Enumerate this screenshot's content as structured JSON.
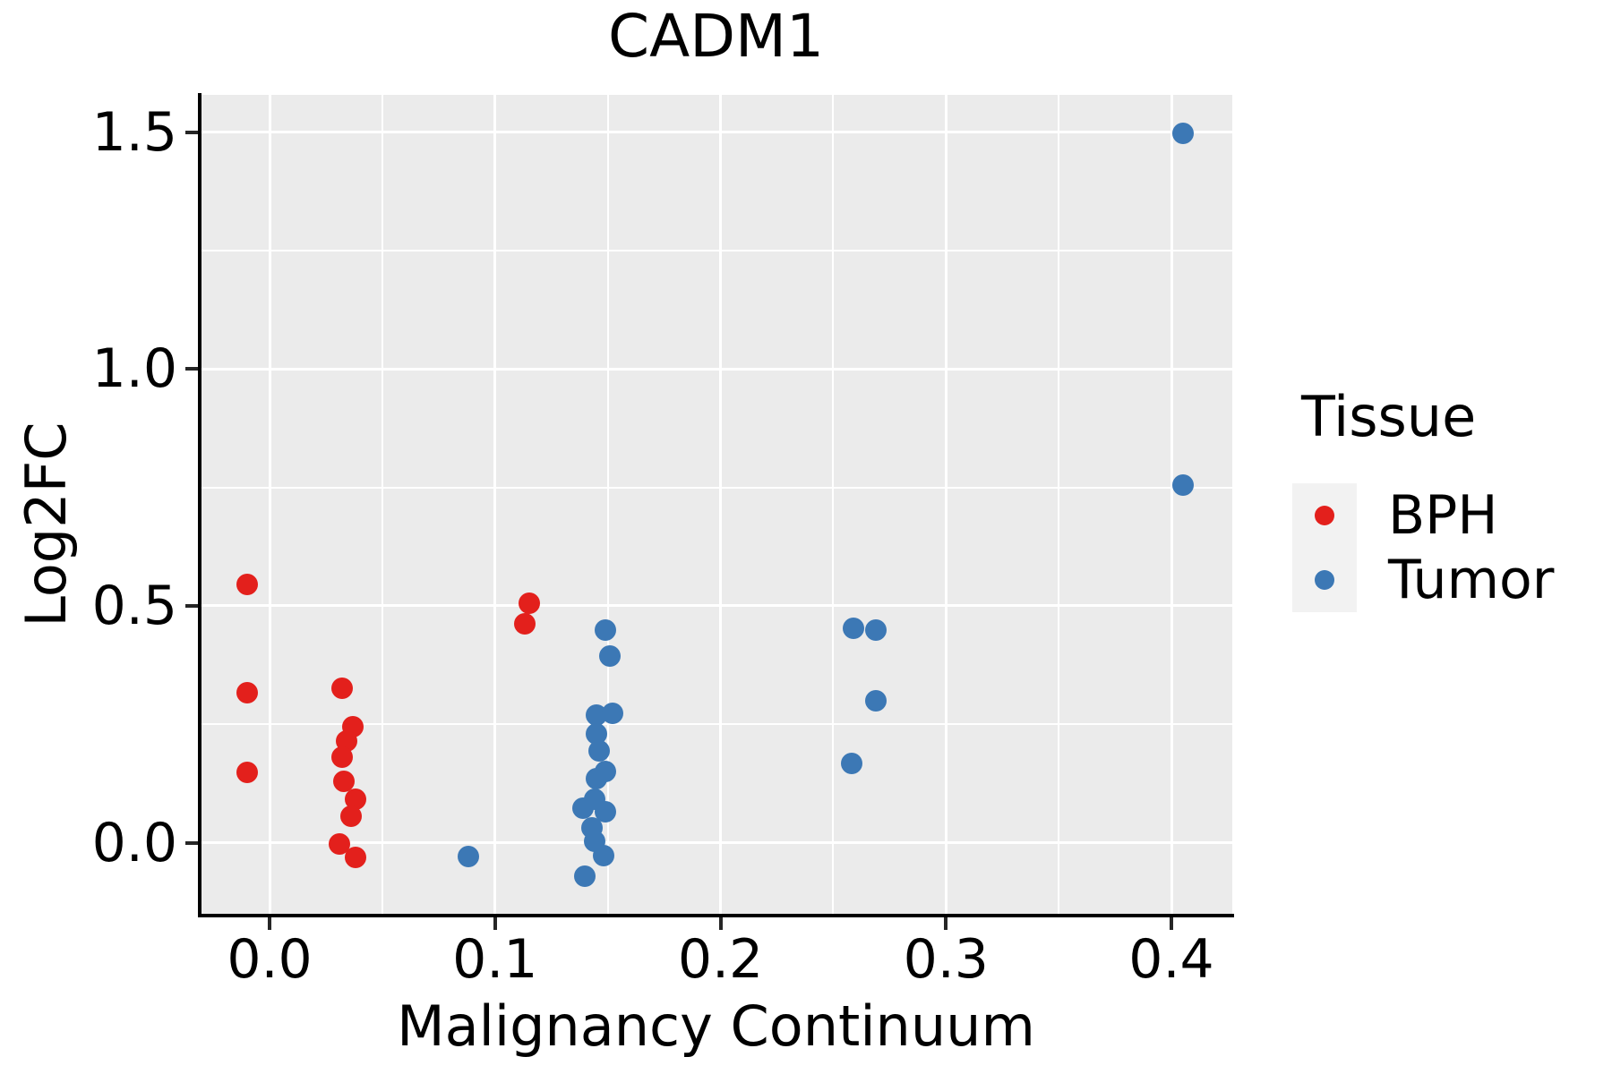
{
  "title": "CADM1",
  "axes": {
    "x_label": "Malignancy Continuum",
    "y_label": "Log2FC",
    "x_tick_labels": [
      "0.0",
      "0.1",
      "0.2",
      "0.3",
      "0.4"
    ],
    "y_tick_labels": [
      "0.0",
      "0.5",
      "1.0",
      "1.5"
    ]
  },
  "legend": {
    "title": "Tissue",
    "items": [
      {
        "label": "BPH",
        "color": "#e3201c"
      },
      {
        "label": "Tumor",
        "color": "#3c78b5"
      }
    ]
  },
  "colors": {
    "plot_background": "#ebebeb",
    "grid": "#ffffff",
    "legend_key_background": "#f2f2f2",
    "bph": "#e3201c",
    "tumor": "#3c78b5"
  },
  "chart_data": {
    "type": "scatter",
    "title": "CADM1",
    "xlabel": "Malignancy Continuum",
    "ylabel": "Log2FC",
    "xlim": [
      -0.031,
      0.427
    ],
    "ylim": [
      -0.154,
      1.579
    ],
    "x_major_ticks": [
      0.0,
      0.1,
      0.2,
      0.3,
      0.4
    ],
    "x_minor_ticks": [
      0.05,
      0.15,
      0.25,
      0.35
    ],
    "y_major_ticks": [
      0.0,
      0.5,
      1.0,
      1.5
    ],
    "y_minor_ticks": [
      0.25,
      0.75,
      1.25
    ],
    "grid": true,
    "legend_title": "Tissue",
    "legend_position": "right",
    "series": [
      {
        "name": "BPH",
        "color": "#e3201c",
        "points": [
          [
            -0.01,
            0.545
          ],
          [
            -0.01,
            0.317
          ],
          [
            -0.01,
            0.148
          ],
          [
            0.032,
            0.326
          ],
          [
            0.037,
            0.245
          ],
          [
            0.034,
            0.215
          ],
          [
            0.032,
            0.181
          ],
          [
            0.033,
            0.129
          ],
          [
            0.038,
            0.092
          ],
          [
            0.036,
            0.056
          ],
          [
            0.031,
            -0.003
          ],
          [
            0.038,
            -0.031
          ],
          [
            0.115,
            0.506
          ],
          [
            0.113,
            0.462
          ]
        ]
      },
      {
        "name": "Tumor",
        "color": "#3c78b5",
        "points": [
          [
            0.088,
            -0.029
          ],
          [
            0.149,
            0.449
          ],
          [
            0.151,
            0.394
          ],
          [
            0.145,
            0.27
          ],
          [
            0.152,
            0.273
          ],
          [
            0.145,
            0.23
          ],
          [
            0.146,
            0.194
          ],
          [
            0.149,
            0.151
          ],
          [
            0.145,
            0.135
          ],
          [
            0.144,
            0.091
          ],
          [
            0.139,
            0.072
          ],
          [
            0.149,
            0.065
          ],
          [
            0.143,
            0.031
          ],
          [
            0.144,
            0.002
          ],
          [
            0.148,
            -0.028
          ],
          [
            0.14,
            -0.071
          ],
          [
            0.259,
            0.453
          ],
          [
            0.269,
            0.449
          ],
          [
            0.269,
            0.3
          ],
          [
            0.258,
            0.167
          ],
          [
            0.405,
            1.498
          ],
          [
            0.405,
            0.755
          ]
        ]
      }
    ]
  }
}
